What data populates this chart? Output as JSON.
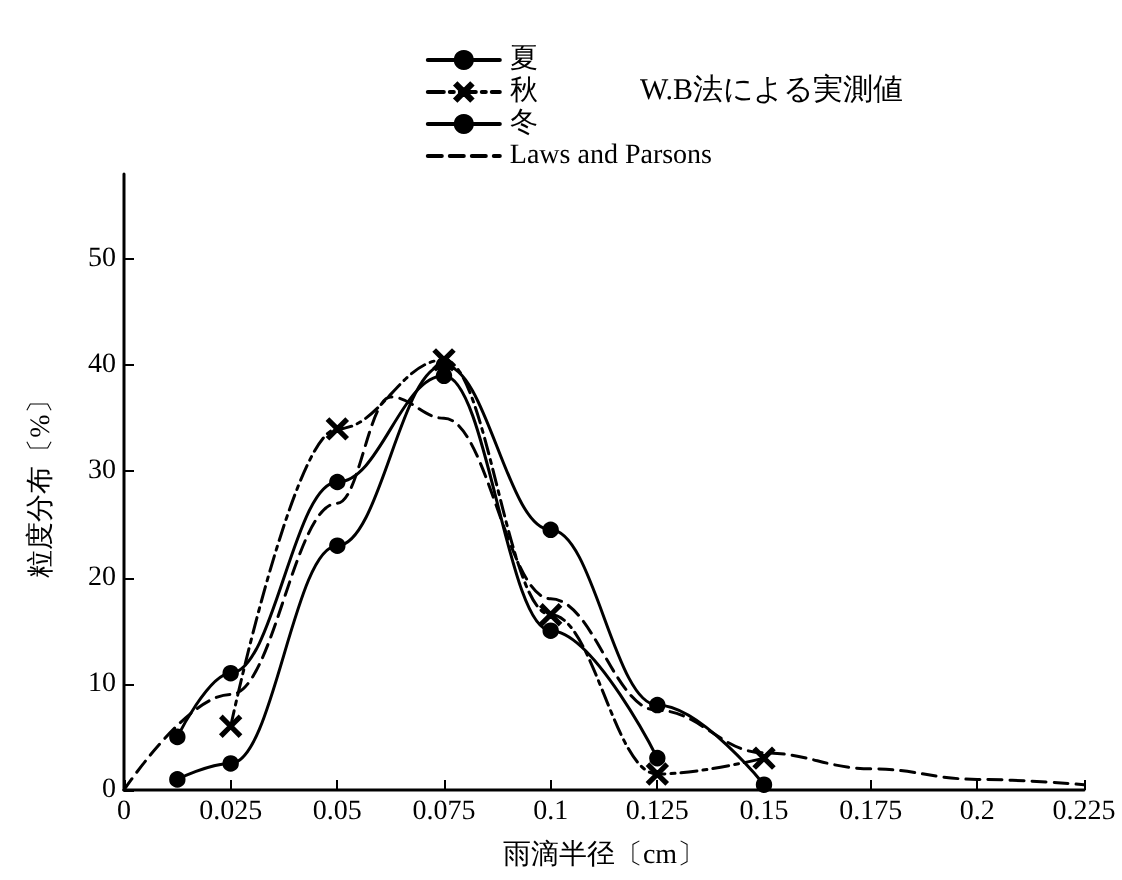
{
  "chart_data": {
    "type": "line",
    "xlabel": "雨滴半径〔cm〕",
    "ylabel": "粒度分布〔%〕",
    "legend": "top right",
    "annotations": [
      "W.B法による実測値"
    ],
    "xlim": [
      0,
      0.225
    ],
    "xticks": [
      0,
      0.025,
      0.05,
      0.075,
      0.1,
      0.125,
      0.15,
      0.175,
      0.2,
      0.225
    ],
    "ylim": [
      0,
      58
    ],
    "yticks": [
      0,
      10,
      20,
      30,
      40,
      50
    ],
    "grid": false,
    "series": [
      {
        "name": "夏",
        "color": "#000000",
        "marker": "circle",
        "line_style": "solid",
        "x": [
          0.0125,
          0.025,
          0.05,
          0.075,
          0.1,
          0.125,
          0.15
        ],
        "values": [
          1,
          2.5,
          23,
          40,
          24.5,
          8,
          0.5
        ]
      },
      {
        "name": "秋",
        "color": "#000000",
        "marker": "cross",
        "line_style": "dashdot",
        "x": [
          0.025,
          0.05,
          0.075,
          0.1,
          0.125,
          0.15
        ],
        "values": [
          6,
          34,
          40.5,
          16.5,
          1.5,
          3
        ]
      },
      {
        "name": "冬",
        "color": "#000000",
        "marker": "circle",
        "line_style": "solid",
        "x": [
          0.0125,
          0.025,
          0.05,
          0.075,
          0.1,
          0.125
        ],
        "values": [
          5,
          11,
          29,
          39,
          15,
          3
        ]
      },
      {
        "name": "Laws and Parsons",
        "color": "#000000",
        "marker": "none",
        "line_style": "dashed",
        "x": [
          0,
          0.025,
          0.05,
          0.0625,
          0.075,
          0.1,
          0.125,
          0.15,
          0.175,
          0.2,
          0.225
        ],
        "values": [
          0,
          9,
          27,
          37,
          35,
          18,
          7.5,
          3.5,
          2,
          1,
          0.5
        ]
      }
    ]
  }
}
